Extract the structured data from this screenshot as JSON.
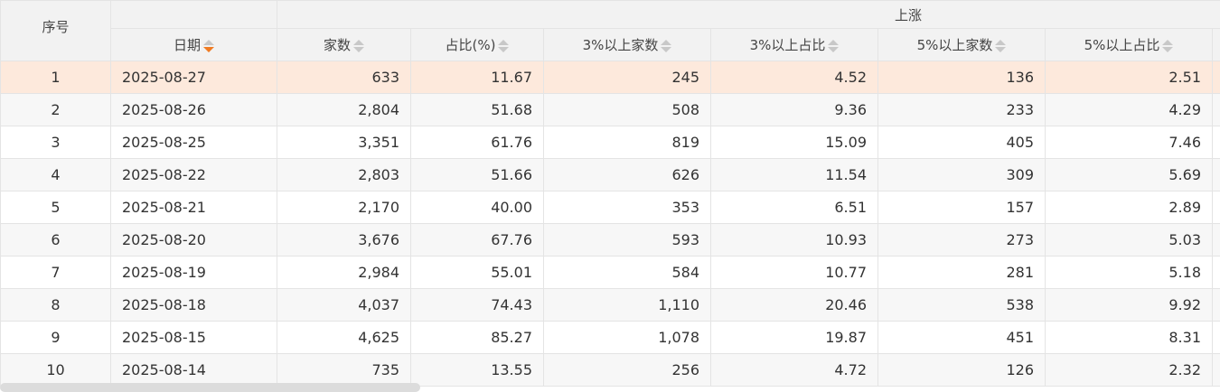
{
  "header": {
    "index": "序号",
    "group": "上涨",
    "columns": [
      "日期",
      "家数",
      "占比(%)",
      "3%以上家数",
      "3%以上占比",
      "5%以上家数",
      "5%以上占比"
    ],
    "active_sort": "日期",
    "active_sort_direction": "desc"
  },
  "colors": {
    "highlight_row": "#fde9dc",
    "sort_active": "#f07b22"
  },
  "rows": [
    [
      "1",
      "2025-08-27",
      "633",
      "11.67",
      "245",
      "4.52",
      "136",
      "2.51"
    ],
    [
      "2",
      "2025-08-26",
      "2,804",
      "51.68",
      "508",
      "9.36",
      "233",
      "4.29"
    ],
    [
      "3",
      "2025-08-25",
      "3,351",
      "61.76",
      "819",
      "15.09",
      "405",
      "7.46"
    ],
    [
      "4",
      "2025-08-22",
      "2,803",
      "51.66",
      "626",
      "11.54",
      "309",
      "5.69"
    ],
    [
      "5",
      "2025-08-21",
      "2,170",
      "40.00",
      "353",
      "6.51",
      "157",
      "2.89"
    ],
    [
      "6",
      "2025-08-20",
      "3,676",
      "67.76",
      "593",
      "10.93",
      "273",
      "5.03"
    ],
    [
      "7",
      "2025-08-19",
      "2,984",
      "55.01",
      "584",
      "10.77",
      "281",
      "5.18"
    ],
    [
      "8",
      "2025-08-18",
      "4,037",
      "74.43",
      "1,110",
      "20.46",
      "538",
      "9.92"
    ],
    [
      "9",
      "2025-08-15",
      "4,625",
      "85.27",
      "1,078",
      "19.87",
      "451",
      "8.31"
    ],
    [
      "10",
      "2025-08-14",
      "735",
      "13.55",
      "256",
      "4.72",
      "126",
      "2.32"
    ]
  ]
}
